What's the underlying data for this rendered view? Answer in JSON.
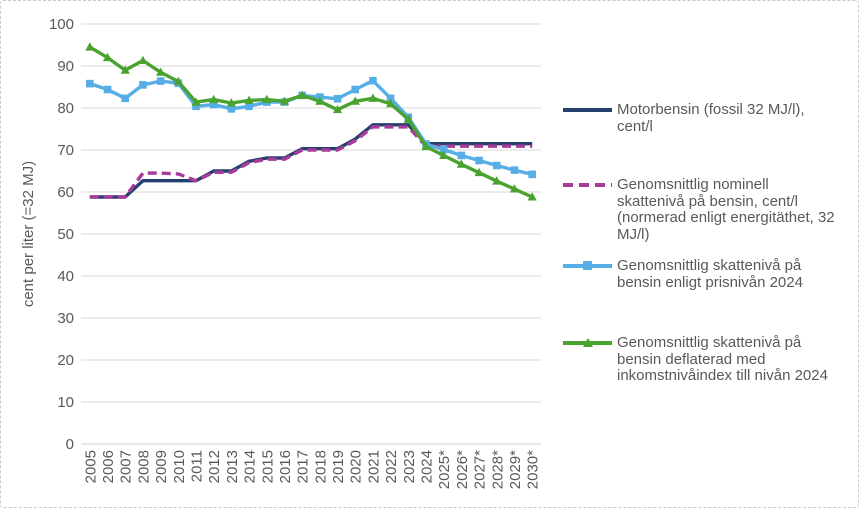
{
  "figure": {
    "ylabel": "cent per liter (=32 MJ)"
  },
  "colors": {
    "grid": "#d9d9d9",
    "axis_line": "#d0d0d0",
    "text": "#595959",
    "navy": "#26406e",
    "magenta": "#a83a9c",
    "light_blue": "#57aee6",
    "green": "#4aa32e"
  },
  "legend": {
    "entries": [
      {
        "label": "Motorbensin (fossil 32 MJ/l),\ncent/l"
      },
      {
        "label": "Genomsnittlig nominell\nskattenivå på bensin, cent/l\n(normerad enligt energitäthet, 32\nMJ/l)"
      },
      {
        "label": "Genomsnittlig skattenivå på\nbensin enligt prisnivån 2024"
      },
      {
        "label": "Genomsnittlig skattenivå på\nbensin deflaterad med\ninkomstnivåindex till nivån 2024"
      }
    ]
  },
  "chart_data": {
    "type": "line",
    "title": "",
    "xlabel": "",
    "ylabel": "cent per liter (=32 MJ)",
    "ylim": [
      0,
      100
    ],
    "ytick_step": 10,
    "grid": "horizontal",
    "legend_position": "right",
    "categories": [
      "2005",
      "2006",
      "2007",
      "2008",
      "2009",
      "2010",
      "2011",
      "2012",
      "2013",
      "2014",
      "2015",
      "2016",
      "2017",
      "2018",
      "2019",
      "2020",
      "2021",
      "2022",
      "2023",
      "2024",
      "2025*",
      "2026*",
      "2027*",
      "2028*",
      "2029*",
      "2030*"
    ],
    "series": [
      {
        "id": "motorbensin",
        "name": "Motorbensin (fossil 32 MJ/l), cent/l",
        "color": "#26406e",
        "line_style": "solid",
        "marker": "none",
        "values": [
          58.8,
          58.8,
          58.8,
          62.7,
          62.7,
          62.7,
          62.7,
          65.0,
          65.0,
          67.3,
          68.1,
          68.1,
          70.3,
          70.3,
          70.3,
          72.6,
          76.0,
          76.0,
          76.0,
          71.5,
          71.5,
          71.5,
          71.5,
          71.5,
          71.5,
          71.5
        ]
      },
      {
        "id": "nominell-skatteniva",
        "name": "Genomsnittlig nominell skattenivå på bensin, cent/l (normerad enligt energitäthet, 32 MJ/l)",
        "color": "#a83a9c",
        "line_style": "dashed",
        "marker": "none",
        "values": [
          58.8,
          58.8,
          58.8,
          64.5,
          64.5,
          64.3,
          62.7,
          64.7,
          64.7,
          67.0,
          67.8,
          67.8,
          70.0,
          70.0,
          70.0,
          72.2,
          75.5,
          75.5,
          75.5,
          70.9,
          70.9,
          70.9,
          70.9,
          70.9,
          70.9,
          70.9
        ]
      },
      {
        "id": "prisnivan-2024",
        "name": "Genomsnittlig skattenivå på bensin enligt prisnivån 2024",
        "color": "#57aee6",
        "line_style": "solid",
        "marker": "square",
        "values": [
          85.8,
          84.4,
          82.3,
          85.5,
          86.4,
          85.9,
          80.4,
          80.8,
          79.8,
          80.4,
          81.4,
          81.4,
          83.0,
          82.6,
          82.2,
          84.4,
          86.5,
          82.3,
          77.8,
          71.4,
          70.1,
          68.7,
          67.5,
          66.3,
          65.2,
          64.2
        ]
      },
      {
        "id": "inkomstnivaindex-2024",
        "name": "Genomsnittlig skattenivå på bensin deflaterad med inkomstnivåindex till nivån 2024",
        "color": "#4aa32e",
        "line_style": "solid",
        "marker": "triangle",
        "values": [
          94.5,
          92.0,
          89.0,
          91.3,
          88.5,
          86.3,
          81.4,
          82.0,
          81.2,
          81.8,
          82.0,
          81.6,
          83.0,
          81.6,
          79.6,
          81.6,
          82.3,
          81.0,
          77.3,
          70.8,
          68.7,
          66.6,
          64.6,
          62.6,
          60.7,
          58.8
        ]
      }
    ]
  }
}
